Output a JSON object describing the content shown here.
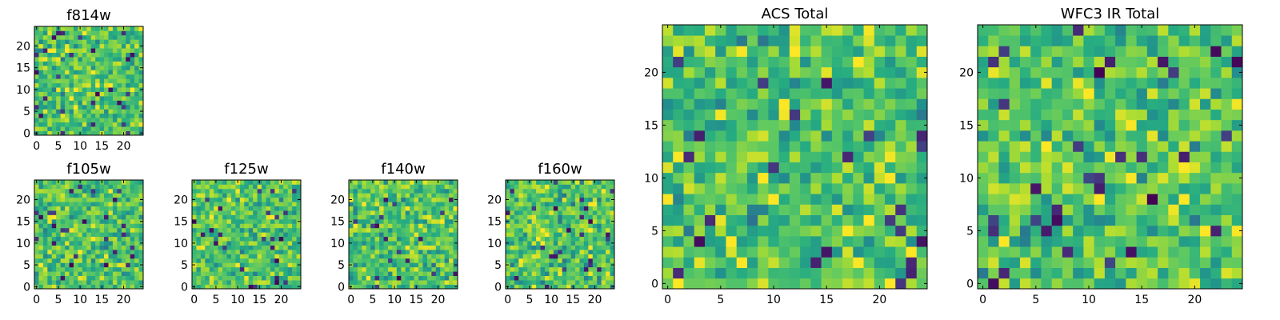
{
  "figure_title": "",
  "chart_data": [
    {
      "id": "f814w",
      "type": "heatmap",
      "title": "f814w",
      "size": 25,
      "xticks": [
        0,
        5,
        10,
        15,
        20
      ],
      "yticks": [
        0,
        5,
        10,
        15,
        20
      ],
      "colormap": "viridis",
      "seed": 814
    },
    {
      "id": "f105w",
      "type": "heatmap",
      "title": "f105w",
      "size": 25,
      "xticks": [
        0,
        5,
        10,
        15,
        20
      ],
      "yticks": [
        0,
        5,
        10,
        15,
        20
      ],
      "colormap": "viridis",
      "seed": 105
    },
    {
      "id": "f125w",
      "type": "heatmap",
      "title": "f125w",
      "size": 25,
      "xticks": [
        0,
        5,
        10,
        15,
        20
      ],
      "yticks": [
        0,
        5,
        10,
        15,
        20
      ],
      "colormap": "viridis",
      "seed": 125
    },
    {
      "id": "f140w",
      "type": "heatmap",
      "title": "f140w",
      "size": 25,
      "xticks": [
        0,
        5,
        10,
        15,
        20
      ],
      "yticks": [
        0,
        5,
        10,
        15,
        20
      ],
      "colormap": "viridis",
      "seed": 140
    },
    {
      "id": "f160w",
      "type": "heatmap",
      "title": "f160w",
      "size": 25,
      "xticks": [
        0,
        5,
        10,
        15,
        20
      ],
      "yticks": [
        0,
        5,
        10,
        15,
        20
      ],
      "colormap": "viridis",
      "seed": 160
    },
    {
      "id": "acs-total",
      "type": "heatmap",
      "title": "ACS Total",
      "size": 25,
      "xticks": [
        0,
        5,
        10,
        15,
        20
      ],
      "yticks": [
        0,
        5,
        10,
        15,
        20
      ],
      "colormap": "viridis",
      "seed": 2001
    },
    {
      "id": "wfc3-ir-total",
      "type": "heatmap",
      "title": "WFC3 IR Total",
      "size": 25,
      "xticks": [
        0,
        5,
        10,
        15,
        20
      ],
      "yticks": [
        0,
        5,
        10,
        15,
        20
      ],
      "colormap": "viridis",
      "seed": 3001
    }
  ],
  "colors": {
    "frame": "#000000",
    "background": "#ffffff"
  }
}
